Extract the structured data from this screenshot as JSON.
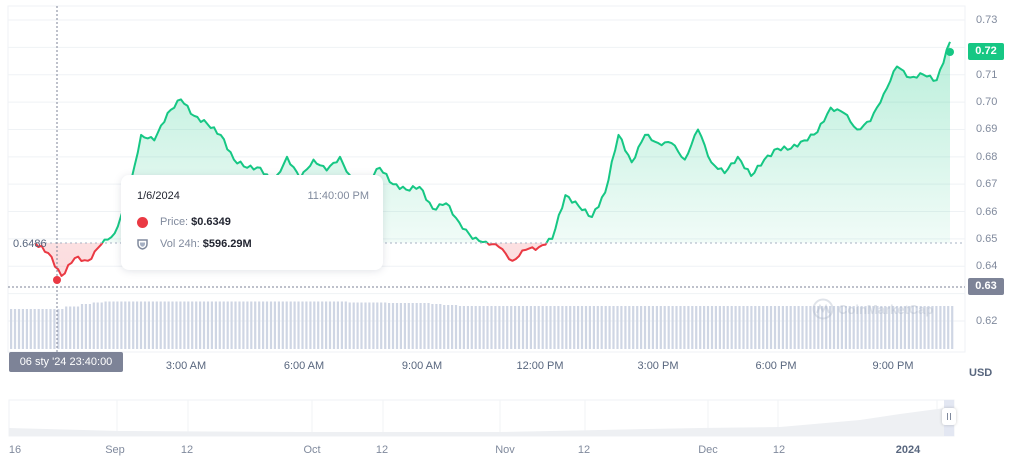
{
  "chart_data": {
    "type": "line",
    "title": "",
    "xlabel": "",
    "ylabel": "USD",
    "ylim": [
      0.615,
      0.735
    ],
    "y_ticks": [
      "0.73",
      "0.72",
      "0.71",
      "0.70",
      "0.69",
      "0.68",
      "0.67",
      "0.66",
      "0.65",
      "0.64",
      "0.63",
      "0.62"
    ],
    "x_ticks": [
      "3:00 AM",
      "6:00 AM",
      "9:00 AM",
      "12:00 PM",
      "3:00 PM",
      "6:00 PM",
      "9:00 PM"
    ],
    "baseline": 0.6486,
    "current_price": 0.72,
    "crosshair_price_badge": "0.63",
    "series": [
      {
        "name": "Price",
        "color_up": "#16c784",
        "color_down": "#ea3943",
        "x": [
          "00:00",
          "00:20",
          "00:40",
          "01:00",
          "01:20",
          "01:40",
          "02:00",
          "02:20",
          "02:40",
          "03:00",
          "03:20",
          "03:40",
          "04:00",
          "04:20",
          "04:40",
          "05:00",
          "05:20",
          "05:40",
          "06:00",
          "06:20",
          "06:40",
          "07:00",
          "07:20",
          "07:40",
          "08:00",
          "08:20",
          "08:40",
          "09:00",
          "09:20",
          "09:40",
          "10:00",
          "10:20",
          "10:40",
          "11:00",
          "11:20",
          "11:40",
          "12:00",
          "12:20",
          "12:40",
          "13:00",
          "13:20",
          "13:40",
          "14:00",
          "14:20",
          "14:40",
          "15:00",
          "15:20",
          "15:40",
          "16:00",
          "16:20",
          "16:40",
          "17:00",
          "17:20",
          "17:40",
          "18:00",
          "18:20",
          "18:40",
          "19:00",
          "19:20",
          "19:40",
          "20:00",
          "20:20",
          "20:40",
          "21:00",
          "21:20",
          "21:40",
          "22:00",
          "22:20",
          "22:40",
          "23:00"
        ],
        "values": [
          0.6486,
          0.6448,
          0.6365,
          0.643,
          0.642,
          0.648,
          0.652,
          0.665,
          0.688,
          0.686,
          0.696,
          0.701,
          0.695,
          0.692,
          0.688,
          0.679,
          0.676,
          0.676,
          0.67,
          0.68,
          0.672,
          0.679,
          0.675,
          0.68,
          0.67,
          0.671,
          0.676,
          0.67,
          0.668,
          0.669,
          0.661,
          0.663,
          0.656,
          0.65,
          0.649,
          0.647,
          0.642,
          0.646,
          0.647,
          0.65,
          0.666,
          0.662,
          0.658,
          0.667,
          0.688,
          0.678,
          0.688,
          0.685,
          0.685,
          0.679,
          0.69,
          0.678,
          0.674,
          0.68,
          0.673,
          0.679,
          0.683,
          0.683,
          0.686,
          0.689,
          0.698,
          0.696,
          0.69,
          0.693,
          0.703,
          0.713,
          0.709,
          0.71,
          0.708,
          0.722
        ]
      },
      {
        "name": "Vol 24h",
        "unit": "USD",
        "values_relative_height": [
          0.8,
          0.8,
          0.8,
          0.8,
          0.85,
          0.9,
          0.93,
          0.95,
          0.95,
          0.95,
          0.95,
          0.95,
          0.95,
          0.95,
          0.95,
          0.95,
          0.95,
          0.95,
          0.95,
          0.95,
          0.95,
          0.95,
          0.95,
          0.95,
          0.95,
          0.93,
          0.93,
          0.93,
          0.92,
          0.92,
          0.92,
          0.9,
          0.88,
          0.86,
          0.86,
          0.86,
          0.86,
          0.86,
          0.86,
          0.86,
          0.86,
          0.86,
          0.86,
          0.86,
          0.86,
          0.86,
          0.86,
          0.86,
          0.86,
          0.86,
          0.86,
          0.86,
          0.86,
          0.86,
          0.86,
          0.86,
          0.86,
          0.86,
          0.86,
          0.86,
          0.86,
          0.86,
          0.86,
          0.86,
          0.86,
          0.86,
          0.86,
          0.86,
          0.86,
          0.86
        ]
      }
    ],
    "navigator": {
      "labels": [
        "16",
        "Sep",
        "12",
        "Oct",
        "12",
        "Nov",
        "12",
        "Dec",
        "12",
        "2024"
      ]
    }
  },
  "axis": {
    "currency": "USD",
    "baseline_label": "0.6486",
    "current_badge": "0.72",
    "crosshair_badge": "0.63",
    "crosshair_time": "06 sty '24   23:40:00"
  },
  "tooltip": {
    "date": "1/6/2024",
    "time": "11:40:00 PM",
    "price_label": "Price:",
    "price_value": "$0.6349",
    "volume_label": "Vol 24h:",
    "volume_value": "$596.29M"
  },
  "watermark": "CoinMarketCap",
  "colors": {
    "up": "#16c784",
    "down": "#ea3943",
    "badge_current": "#16c784",
    "badge_crosshair": "#7d8397",
    "volume": "#cfd6e4",
    "grid": "#eff2f5"
  }
}
